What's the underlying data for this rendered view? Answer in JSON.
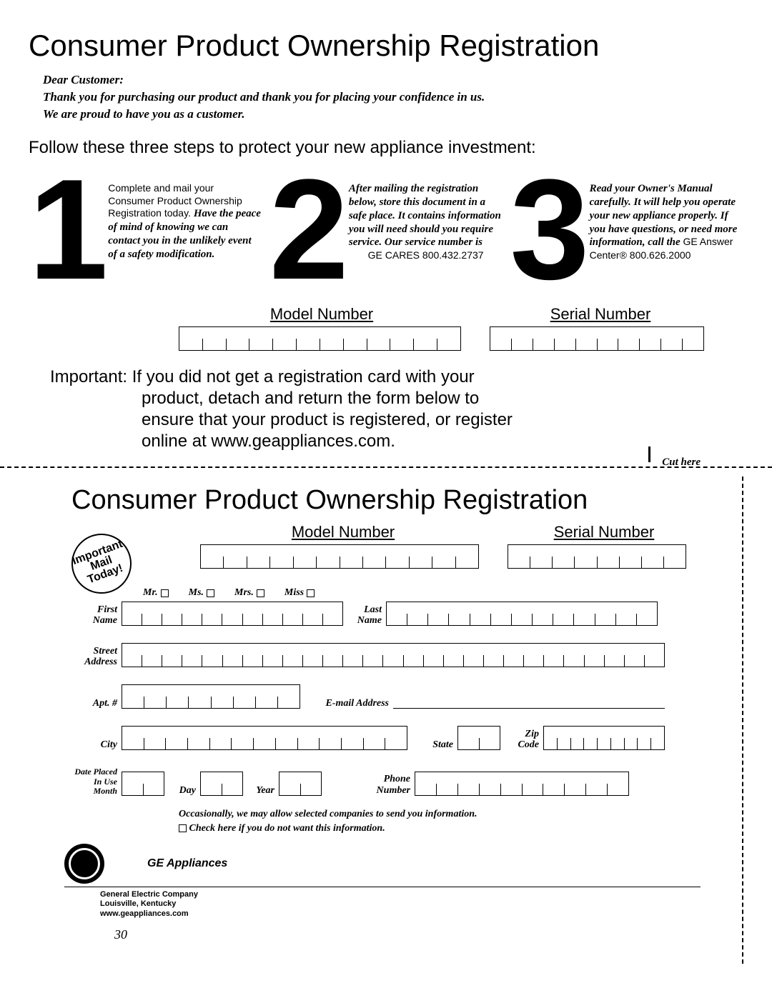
{
  "title": "Consumer Product Ownership Registration",
  "greeting_lines": [
    "Dear Customer:",
    "Thank you for purchasing our product and thank you for placing your confidence in us.",
    "We are proud to have you as a customer."
  ],
  "instruction": "Follow these three steps to protect your new appliance investment:",
  "steps": [
    {
      "num": "1",
      "plain": "Complete and mail your Consumer Product Ownership Registration today. ",
      "serif": "Have the peace of mind of knowing we can contact you in the unlikely event of a safety modification."
    },
    {
      "num": "2",
      "serif_full": "After mailing the registration below, store this document in a safe place. It contains information you will need should you require service. Our service number is ",
      "plain_tail": "GE CARES 800.432.2737"
    },
    {
      "num": "3",
      "serif_full": "Read your Owner's Manual carefully. It will help you operate your new appliance properly. If you have questions, or need more information, call the ",
      "plain_tail": "GE Answer Center® 800.626.2000"
    }
  ],
  "labels": {
    "model_number": "Model Number",
    "serial_number": "Serial Number",
    "cut_here": "Cut here",
    "stamp": "Important\nMail\nToday!",
    "salutations": [
      "Mr. ",
      "Ms. ",
      "Mrs. ",
      "Miss "
    ],
    "first_name": "First\nName",
    "last_name": "Last\nName",
    "street": "Street\nAddress",
    "apt": "Apt. #",
    "email": "E-mail Address",
    "city": "City",
    "state": "State",
    "zip": "Zip\nCode",
    "date_placed": "Date Placed\nIn Use",
    "month": "Month",
    "day": "Day",
    "year": "Year",
    "phone": "Phone\nNumber",
    "brand": "GE Appliances"
  },
  "important_note": "Important: If you did not get a registration card with your product, detach and return the form below to ensure that your product is registered, or register online at www.geappliances.com.",
  "opt_out": "Occasionally, we may allow selected companies to send you information.\n☐ Check here if you do not want this information.",
  "company": "General Electric Company\nLouisville, Kentucky\nwww.geappliances.com",
  "page_num": "30",
  "box_counts": {
    "model": 12,
    "serial": 10,
    "model2": 12,
    "serial2": 8,
    "fname": 11,
    "lname": 13,
    "street": 27,
    "apt": 8,
    "city": 13,
    "state": 2,
    "zip": 9,
    "month": 2,
    "day": 2,
    "year": 2,
    "phone": 10
  }
}
